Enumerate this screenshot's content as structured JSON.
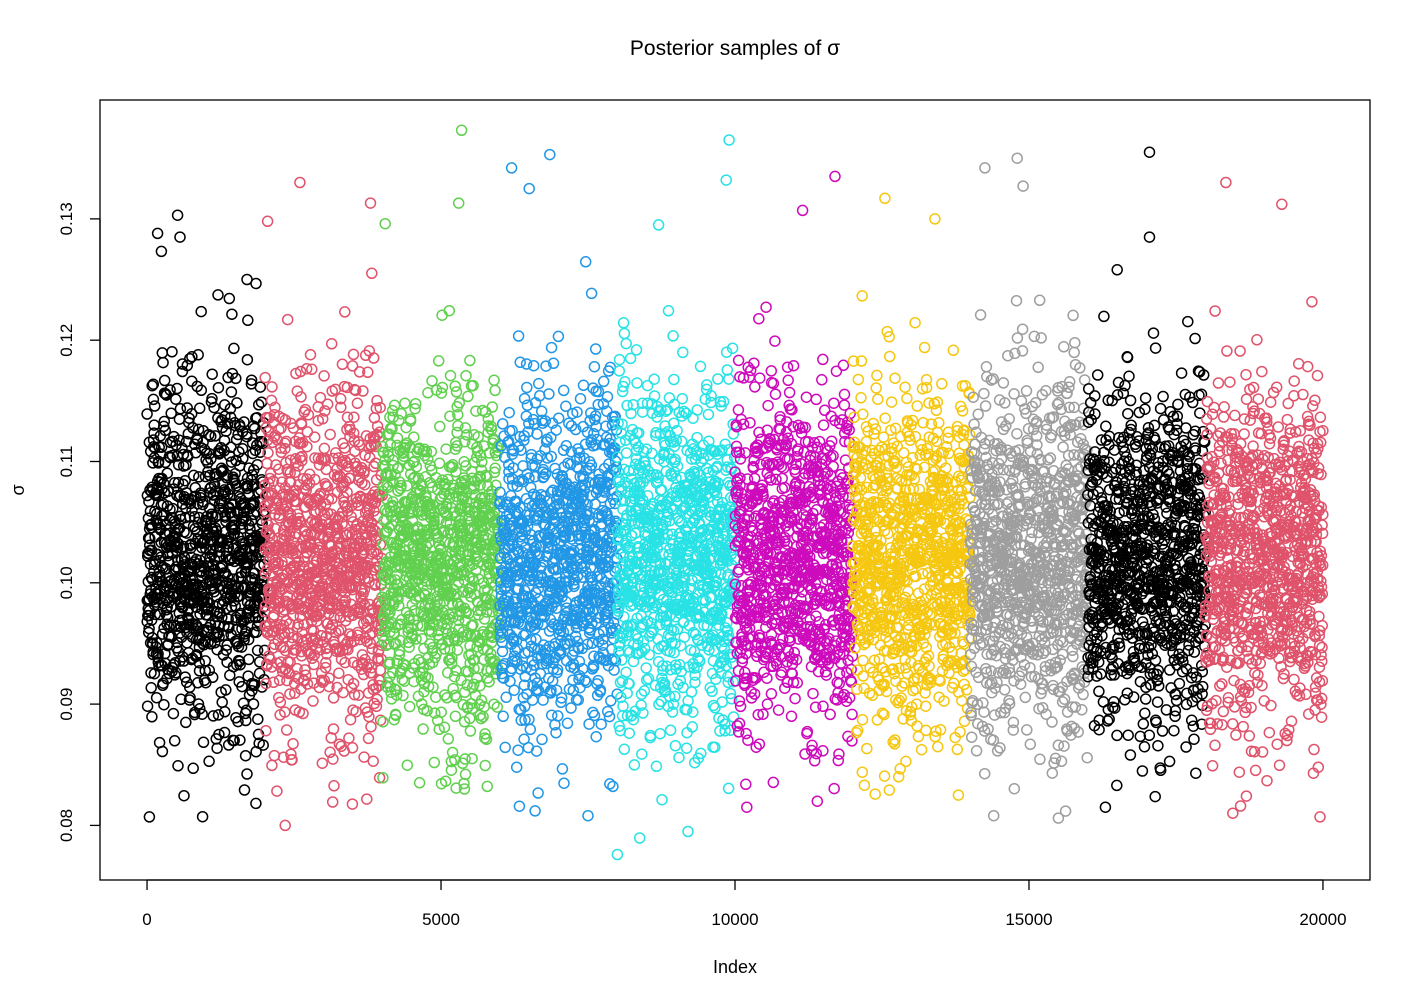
{
  "chart_data": {
    "type": "scatter",
    "title": "Posterior samples of σ",
    "xlabel": "Index",
    "ylabel": "σ",
    "xlim": [
      -800,
      20800
    ],
    "ylim": [
      0.0755,
      0.1398
    ],
    "x_ticks": [
      0,
      5000,
      10000,
      15000,
      20000
    ],
    "x_tick_labels": [
      "0",
      "5000",
      "10000",
      "15000",
      "20000"
    ],
    "y_ticks": [
      0.08,
      0.09,
      0.1,
      0.11,
      0.12,
      0.13
    ],
    "y_tick_labels": [
      "0.08",
      "0.09",
      "0.10",
      "0.11",
      "0.12",
      "0.13"
    ],
    "grid": false,
    "legend": "none",
    "marker": "open-circle",
    "series": [
      {
        "index_range": [
          1,
          2000
        ],
        "color": "#000000",
        "center": 0.1025,
        "spread": 0.007,
        "min": 0.0807,
        "max": 0.1303,
        "notable_points": [
          [
            40,
            0.0807
          ],
          [
            520,
            0.1303
          ],
          [
            560,
            0.1285
          ],
          [
            180,
            0.1288
          ],
          [
            1700,
            0.125
          ]
        ]
      },
      {
        "index_range": [
          2001,
          4000
        ],
        "color": "#DF536B",
        "center": 0.102,
        "spread": 0.007,
        "min": 0.08,
        "max": 0.133,
        "notable_points": [
          [
            2600,
            0.133
          ],
          [
            2350,
            0.08
          ],
          [
            3800,
            0.1313
          ],
          [
            2050,
            0.1298
          ]
        ]
      },
      {
        "index_range": [
          4001,
          6000
        ],
        "color": "#61D04F",
        "center": 0.102,
        "spread": 0.0068,
        "min": 0.083,
        "max": 0.1373,
        "notable_points": [
          [
            5350,
            0.1373
          ],
          [
            5300,
            0.1313
          ],
          [
            4050,
            0.1296
          ],
          [
            5400,
            0.083
          ]
        ]
      },
      {
        "index_range": [
          6001,
          8000
        ],
        "color": "#2297E6",
        "center": 0.102,
        "spread": 0.0068,
        "min": 0.0808,
        "max": 0.1353,
        "notable_points": [
          [
            6850,
            0.1353
          ],
          [
            6200,
            0.1342
          ],
          [
            6500,
            0.1325
          ],
          [
            7500,
            0.0808
          ],
          [
            6600,
            0.0812
          ]
        ]
      },
      {
        "index_range": [
          8001,
          10000
        ],
        "color": "#28E2E5",
        "center": 0.102,
        "spread": 0.007,
        "min": 0.0776,
        "max": 0.1365,
        "notable_points": [
          [
            9900,
            0.1365
          ],
          [
            9850,
            0.1332
          ],
          [
            8000,
            0.0776
          ],
          [
            9200,
            0.0795
          ],
          [
            8700,
            0.1295
          ]
        ]
      },
      {
        "index_range": [
          10001,
          12000
        ],
        "color": "#CD0BBC",
        "center": 0.102,
        "spread": 0.0068,
        "min": 0.0815,
        "max": 0.1335,
        "notable_points": [
          [
            11700,
            0.1335
          ],
          [
            11150,
            0.1307
          ],
          [
            10200,
            0.0815
          ],
          [
            11400,
            0.082
          ]
        ]
      },
      {
        "index_range": [
          12001,
          14000
        ],
        "color": "#F5C710",
        "center": 0.102,
        "spread": 0.0068,
        "min": 0.0825,
        "max": 0.1317,
        "notable_points": [
          [
            12550,
            0.1317
          ],
          [
            13400,
            0.13
          ],
          [
            13800,
            0.0825
          ]
        ]
      },
      {
        "index_range": [
          14001,
          16000
        ],
        "color": "#9E9E9E",
        "center": 0.102,
        "spread": 0.007,
        "min": 0.0805,
        "max": 0.135,
        "notable_points": [
          [
            14800,
            0.135
          ],
          [
            14250,
            0.1342
          ],
          [
            14900,
            0.1327
          ],
          [
            14400,
            0.0808
          ],
          [
            15500,
            0.0806
          ]
        ]
      },
      {
        "index_range": [
          16001,
          18000
        ],
        "color": "#000000",
        "center": 0.102,
        "spread": 0.0068,
        "min": 0.0815,
        "max": 0.1355,
        "notable_points": [
          [
            17050,
            0.1355
          ],
          [
            17050,
            0.1285
          ],
          [
            16300,
            0.0815
          ],
          [
            16500,
            0.1258
          ]
        ]
      },
      {
        "index_range": [
          18001,
          20000
        ],
        "color": "#DF536B",
        "center": 0.102,
        "spread": 0.0068,
        "min": 0.0807,
        "max": 0.133,
        "notable_points": [
          [
            18350,
            0.133
          ],
          [
            19300,
            0.1312
          ],
          [
            19950,
            0.0807
          ],
          [
            18600,
            0.0816
          ]
        ]
      }
    ]
  }
}
